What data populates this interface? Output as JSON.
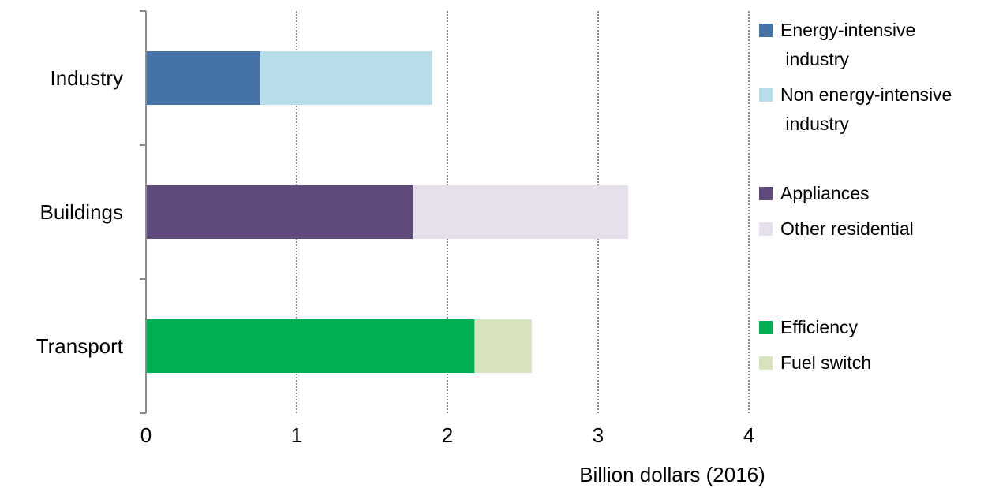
{
  "chart_data": {
    "type": "bar",
    "orientation": "horizontal",
    "stacked": true,
    "categories": [
      "Industry",
      "Buildings",
      "Transport"
    ],
    "xlabel": "Billion dollars (2016)",
    "xlim": [
      0,
      4
    ],
    "xticks": [
      "0",
      "1",
      "2",
      "3",
      "4"
    ],
    "grid": "vertical dotted",
    "legend_position": "right",
    "groups": [
      {
        "category": "Industry",
        "segments": [
          {
            "name": "Energy-intensive industry",
            "legend_lines": [
              "Energy-intensive",
              " industry"
            ],
            "value": 0.76,
            "color": "#4573a7"
          },
          {
            "name": "Non energy-intensive industry",
            "legend_lines": [
              "Non energy-intensive",
              " industry"
            ],
            "value": 1.14,
            "color": "#b7dde8"
          }
        ]
      },
      {
        "category": "Buildings",
        "segments": [
          {
            "name": "Appliances",
            "legend_lines": [
              "Appliances"
            ],
            "value": 1.77,
            "color": "#604a7b"
          },
          {
            "name": "Other residential",
            "legend_lines": [
              "Other residential"
            ],
            "value": 1.43,
            "color": "#e5e0ec"
          }
        ]
      },
      {
        "category": "Transport",
        "segments": [
          {
            "name": "Efficiency",
            "legend_lines": [
              "Efficiency"
            ],
            "value": 2.18,
            "color": "#00b050"
          },
          {
            "name": "Fuel switch",
            "legend_lines": [
              "Fuel switch"
            ],
            "value": 0.38,
            "color": "#d7e4bd"
          }
        ]
      }
    ]
  }
}
